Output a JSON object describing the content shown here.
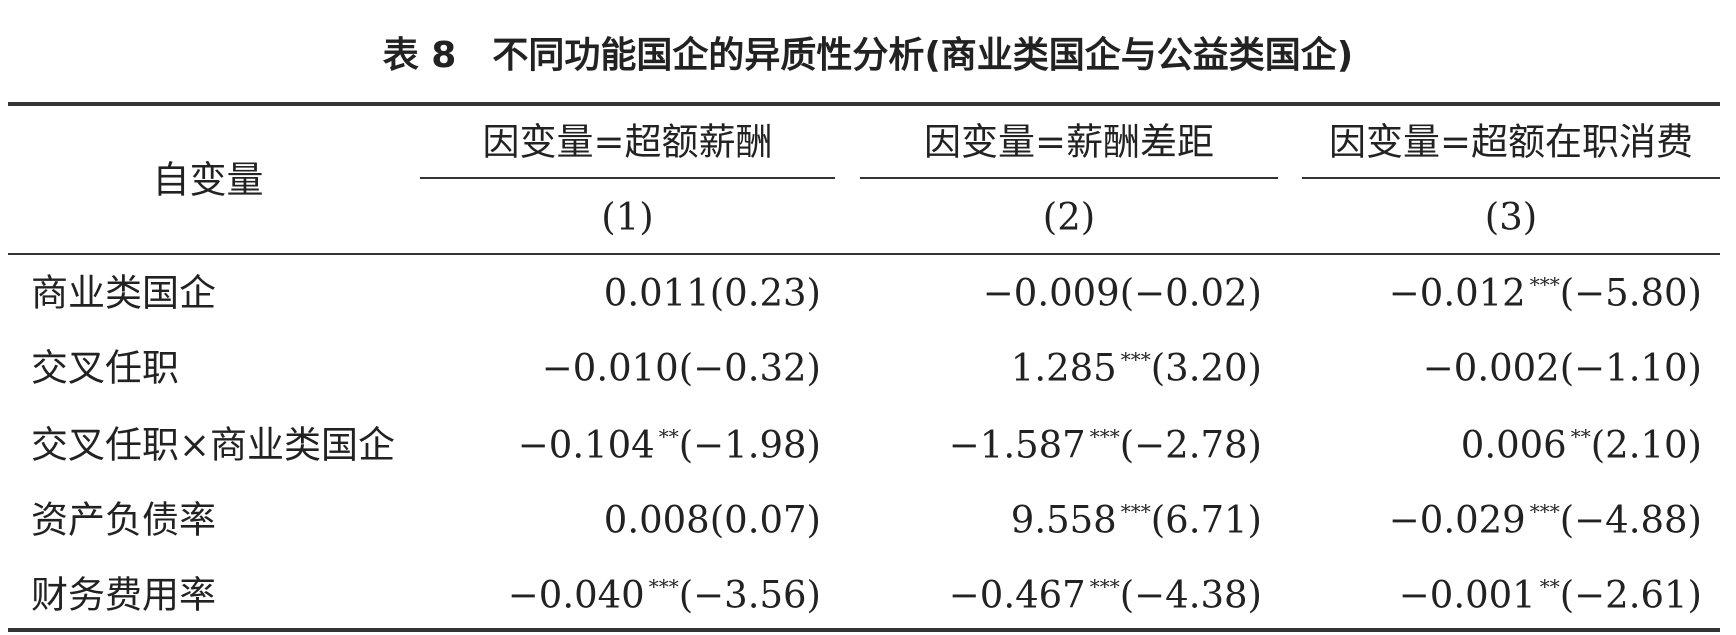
{
  "title": "表 8　不同功能国企的异质性分析(商业类国企与公益类国企)",
  "table": {
    "stub_header": "自变量",
    "groups": [
      {
        "label": "因变量=超额薪酬",
        "column": "(1)"
      },
      {
        "label": "因变量=薪酬差距",
        "column": "(2)"
      },
      {
        "label": "因变量=超额在职消费",
        "column": "(3)"
      }
    ],
    "rows": [
      {
        "label": "商业类国企",
        "cells": [
          {
            "coef": "0.011",
            "t": "(0.23)"
          },
          {
            "coef": "−0.009",
            "t": "(−0.02)"
          },
          {
            "coef": "−0.012",
            "stars": "***",
            "t": "(−5.80)"
          }
        ]
      },
      {
        "label": "交叉任职",
        "cells": [
          {
            "coef": "−0.010",
            "t": "(−0.32)"
          },
          {
            "coef": "1.285",
            "stars": "***",
            "t": "(3.20)"
          },
          {
            "coef": "−0.002",
            "t": "(−1.10)"
          }
        ]
      },
      {
        "label": "交叉任职×商业类国企",
        "cells": [
          {
            "coef": "−0.104",
            "stars": "**",
            "t": "(−1.98)"
          },
          {
            "coef": "−1.587",
            "stars": "***",
            "t": "(−2.78)"
          },
          {
            "coef": "0.006",
            "stars": "**",
            "t": "(2.10)"
          }
        ]
      },
      {
        "label": "资产负债率",
        "cells": [
          {
            "coef": "0.008",
            "t": "(0.07)"
          },
          {
            "coef": "9.558",
            "stars": "***",
            "t": "(6.71)"
          },
          {
            "coef": "−0.029",
            "stars": "***",
            "t": "(−4.88)"
          }
        ]
      },
      {
        "label": "财务费用率",
        "cells": [
          {
            "coef": "−0.040",
            "stars": "***",
            "t": "(−3.56)"
          },
          {
            "coef": "−0.467",
            "stars": "***",
            "t": "(−4.38)"
          },
          {
            "coef": "−0.001",
            "stars": "**",
            "t": "(−2.61)"
          }
        ]
      }
    ]
  }
}
